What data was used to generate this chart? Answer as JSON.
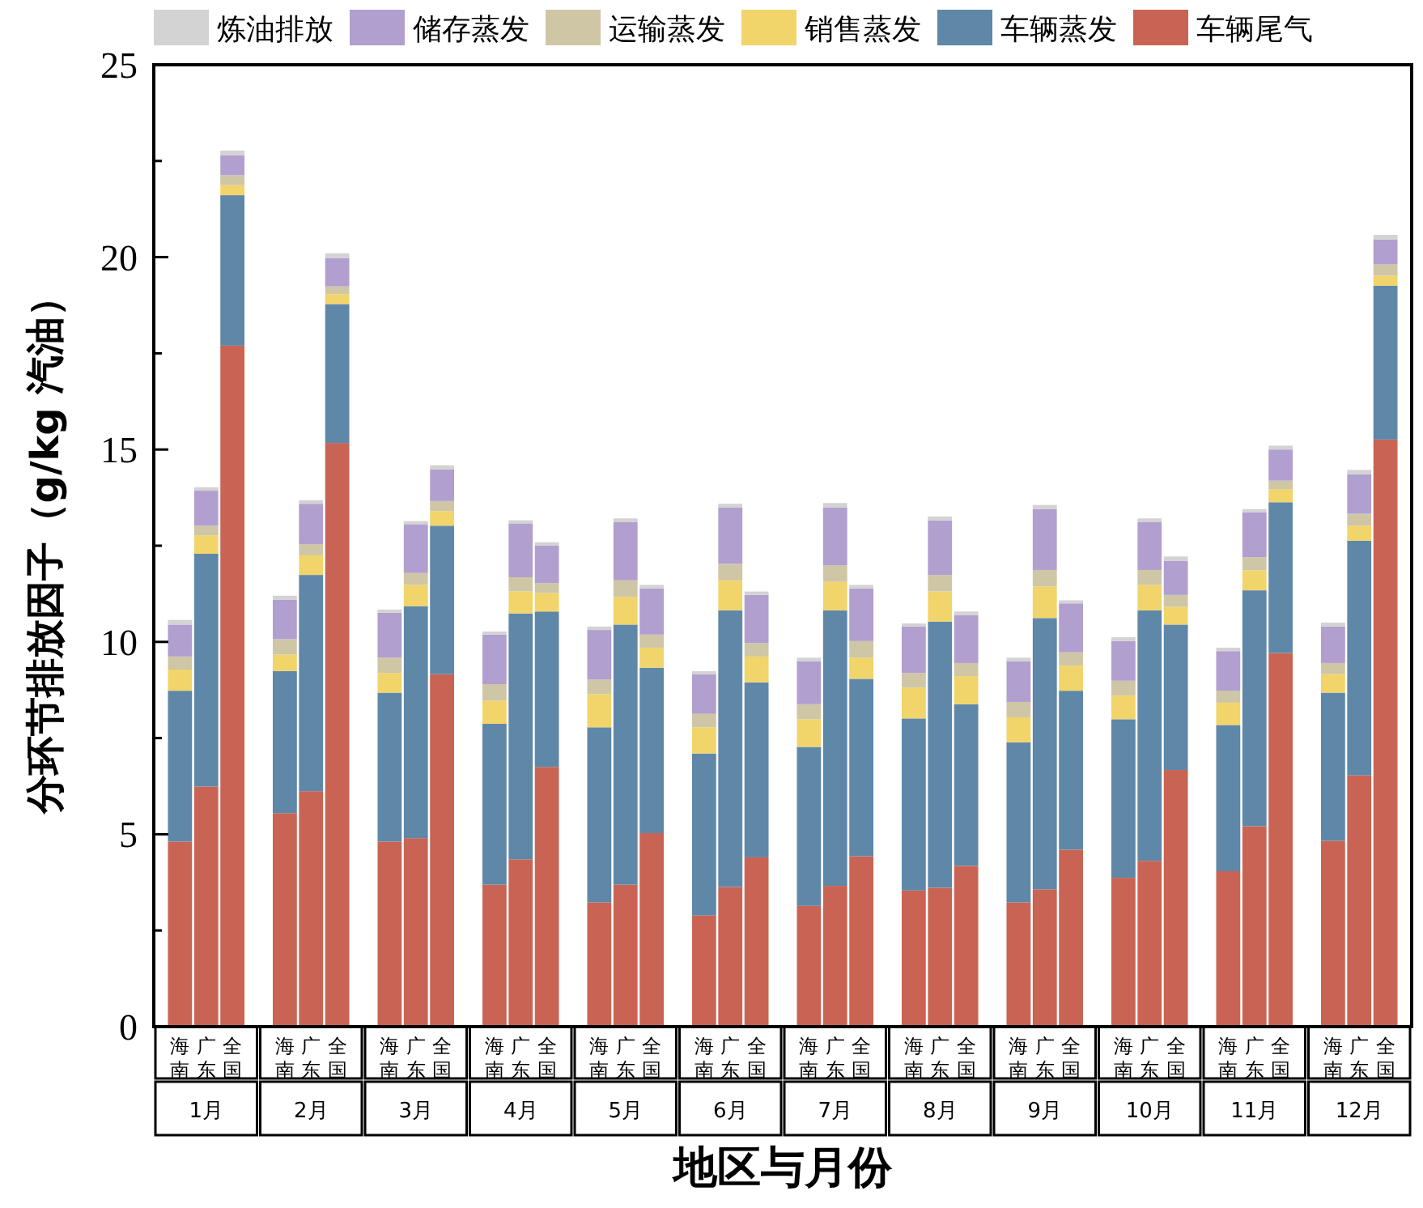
{
  "chart_data": {
    "type": "bar",
    "stacked": true,
    "legend": "top",
    "grid": false,
    "ylabel": "分环节排放因子（g/kg 汽油）",
    "xlabel": "地区与月份",
    "ylim": [
      0,
      25
    ],
    "yticks": [
      0,
      {
        "value": 2.5,
        "label": null
      },
      5,
      {
        "value": 7.5,
        "label": null
      },
      10,
      {
        "value": 12.5,
        "label": null
      },
      15,
      {
        "value": 17.5,
        "label": null
      },
      20,
      {
        "value": 22.5,
        "label": null
      },
      25
    ],
    "categories": [
      "海南",
      "广东",
      "全国",
      "海南",
      "广东",
      "全国",
      "海南",
      "广东",
      "全国",
      "海南",
      "广东",
      "全国",
      "海南",
      "广东",
      "全国",
      "海南",
      "广东",
      "全国",
      "海南",
      "广东",
      "全国",
      "海南",
      "广东",
      "全国",
      "海南",
      "广东",
      "全国",
      "海南",
      "广东",
      "全国",
      "海南",
      "广东",
      "全国",
      "海南",
      "广东",
      "全国"
    ],
    "annotations": [
      "1月",
      "2月",
      "3月",
      "4月",
      "5月",
      "6月",
      "7月",
      "8月",
      "9月",
      "10月",
      "11月",
      "12月"
    ],
    "series": [
      {
        "name": "车辆尾气",
        "color": "#c96454",
        "values": [
          4.81,
          6.24,
          17.7,
          5.55,
          6.12,
          15.17,
          4.81,
          4.9,
          9.16,
          3.69,
          4.35,
          6.75,
          3.23,
          3.69,
          5.03,
          2.89,
          3.63,
          4.4,
          3.14,
          3.66,
          4.43,
          3.54,
          3.61,
          4.18,
          3.23,
          3.57,
          4.6,
          3.87,
          4.31,
          6.67,
          4.04,
          5.21,
          9.71,
          4.83,
          6.53,
          15.26
        ]
      },
      {
        "name": "车辆蒸发",
        "color": "#5f87a8",
        "values": [
          3.92,
          6.05,
          3.91,
          3.69,
          5.62,
          3.61,
          3.87,
          6.03,
          3.86,
          4.18,
          6.39,
          4.04,
          4.55,
          6.76,
          4.3,
          4.21,
          7.19,
          4.55,
          4.13,
          7.16,
          4.61,
          4.47,
          6.92,
          4.2,
          4.16,
          7.05,
          4.13,
          4.12,
          6.51,
          3.78,
          3.8,
          6.13,
          3.92,
          3.85,
          6.1,
          4.0
        ]
      },
      {
        "name": "销售蒸发",
        "color": "#f1d46a",
        "values": [
          0.55,
          0.48,
          0.26,
          0.43,
          0.51,
          0.26,
          0.51,
          0.55,
          0.38,
          0.6,
          0.57,
          0.48,
          0.86,
          0.72,
          0.52,
          0.68,
          0.78,
          0.67,
          0.72,
          0.74,
          0.55,
          0.8,
          0.78,
          0.73,
          0.65,
          0.82,
          0.65,
          0.62,
          0.66,
          0.46,
          0.58,
          0.52,
          0.34,
          0.48,
          0.39,
          0.26
        ]
      },
      {
        "name": "运输蒸发",
        "color": "#cfc6a5",
        "values": [
          0.34,
          0.25,
          0.26,
          0.4,
          0.29,
          0.2,
          0.4,
          0.31,
          0.26,
          0.43,
          0.37,
          0.26,
          0.38,
          0.43,
          0.34,
          0.35,
          0.43,
          0.35,
          0.39,
          0.43,
          0.43,
          0.38,
          0.43,
          0.34,
          0.4,
          0.43,
          0.35,
          0.38,
          0.39,
          0.31,
          0.31,
          0.34,
          0.22,
          0.29,
          0.31,
          0.29
        ]
      },
      {
        "name": "储存蒸发",
        "color": "#b19fcf",
        "values": [
          0.83,
          0.91,
          0.52,
          1.03,
          1.05,
          0.74,
          1.17,
          1.27,
          0.82,
          1.29,
          1.4,
          0.98,
          1.29,
          1.51,
          1.2,
          1.03,
          1.46,
          1.25,
          1.12,
          1.5,
          1.37,
          1.21,
          1.42,
          1.25,
          1.06,
          1.58,
          1.27,
          1.03,
          1.24,
          0.89,
          1.03,
          1.17,
          0.81,
          0.95,
          1.03,
          0.65
        ]
      },
      {
        "name": "炼油排放",
        "color": "#d3d3d3",
        "values": [
          0.12,
          0.09,
          0.12,
          0.1,
          0.09,
          0.12,
          0.08,
          0.08,
          0.11,
          0.08,
          0.08,
          0.08,
          0.09,
          0.1,
          0.09,
          0.08,
          0.1,
          0.09,
          0.09,
          0.12,
          0.09,
          0.08,
          0.1,
          0.09,
          0.09,
          0.11,
          0.08,
          0.1,
          0.1,
          0.11,
          0.09,
          0.08,
          0.1,
          0.1,
          0.11,
          0.12
        ]
      }
    ]
  }
}
